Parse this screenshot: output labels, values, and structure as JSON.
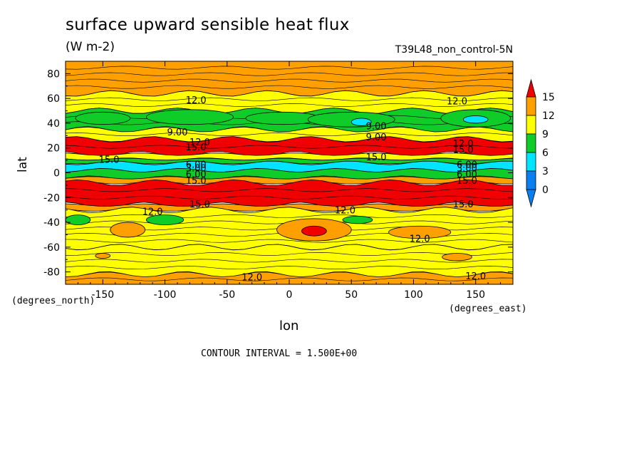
{
  "title": "surface upward sensible heat flux",
  "units": "(W m-2)",
  "run_label": "T39L48_non_control-5N",
  "contour_interval": "CONTOUR INTERVAL = 1.500E+00",
  "colors": {
    "blue": "#0a7ff0",
    "cyan": "#00e5ff",
    "green": "#10cc28",
    "yellow": "#ffff00",
    "orange": "#ffa000",
    "red": "#f00000"
  },
  "chart_data": {
    "type": "heatmap",
    "title": "surface upward sensible heat flux",
    "units": "(W m-2)",
    "xlabel": "lon",
    "ylabel": "lat",
    "x_unit_label": "(degrees_east)",
    "y_unit_label": "(degrees_north)",
    "xlim": [
      -180,
      180
    ],
    "ylim": [
      -90,
      90
    ],
    "x_ticks": [
      {
        "value": -150,
        "label": "-150"
      },
      {
        "value": -100,
        "label": "-100"
      },
      {
        "value": -50,
        "label": "-50"
      },
      {
        "value": 0,
        "label": "0"
      },
      {
        "value": 50,
        "label": "50"
      },
      {
        "value": 100,
        "label": "100"
      },
      {
        "value": 150,
        "label": "150"
      }
    ],
    "y_ticks": [
      {
        "value": 80,
        "label": "80"
      },
      {
        "value": 60,
        "label": "60"
      },
      {
        "value": 40,
        "label": "40"
      },
      {
        "value": 20,
        "label": "20"
      },
      {
        "value": 0,
        "label": "0"
      },
      {
        "value": -20,
        "label": "-20"
      },
      {
        "value": -40,
        "label": "-40"
      },
      {
        "value": -60,
        "label": "-60"
      },
      {
        "value": -80,
        "label": "-80"
      }
    ],
    "colorbar": {
      "labels": [
        "15",
        "12",
        "9",
        "6",
        "3",
        "0"
      ],
      "levels": [
        0,
        3,
        6,
        9,
        12,
        15
      ],
      "colors": [
        "#0a7ff0",
        "#00e5ff",
        "#10cc28",
        "#ffff00",
        "#ffa000",
        "#f00000"
      ]
    },
    "bands": [
      {
        "lat_from": 90,
        "lat_to": 64,
        "range": "12-15"
      },
      {
        "lat_from": 64,
        "lat_to": 50,
        "range": "9-12"
      },
      {
        "lat_from": 50,
        "lat_to": 35,
        "range": "6-9"
      },
      {
        "lat_from": 35,
        "lat_to": 27,
        "range": "9-12"
      },
      {
        "lat_from": 27,
        "lat_to": 15,
        "range": "over 15"
      },
      {
        "lat_from": 15,
        "lat_to": 11,
        "range": "9-12"
      },
      {
        "lat_from": 11,
        "lat_to": 8,
        "range": "6-9"
      },
      {
        "lat_from": 8,
        "lat_to": 2,
        "range": "3-6"
      },
      {
        "lat_from": 2,
        "lat_to": -4,
        "range": "6-9"
      },
      {
        "lat_from": -4,
        "lat_to": -8,
        "range": "12-15"
      },
      {
        "lat_from": -8,
        "lat_to": -26,
        "range": "over 15"
      },
      {
        "lat_from": -26,
        "lat_to": -30,
        "range": "12-15"
      },
      {
        "lat_from": -30,
        "lat_to": -60,
        "range": "9-12"
      },
      {
        "lat_from": -60,
        "lat_to": -82,
        "range": "9-12"
      },
      {
        "lat_from": -82,
        "lat_to": -90,
        "range": "12-15"
      }
    ],
    "features": [
      {
        "kind": "green",
        "lon": -150,
        "lat": 44,
        "rx": 22,
        "ry": 5
      },
      {
        "kind": "green",
        "lon": -80,
        "lat": 45,
        "rx": 35,
        "ry": 6
      },
      {
        "kind": "green",
        "lon": -5,
        "lat": 44,
        "rx": 30,
        "ry": 5
      },
      {
        "kind": "green",
        "lon": 50,
        "lat": 43,
        "rx": 35,
        "ry": 6
      },
      {
        "kind": "green",
        "lon": 150,
        "lat": 44,
        "rx": 28,
        "ry": 7
      },
      {
        "kind": "cyan",
        "lon": 58,
        "lat": 41,
        "rx": 8,
        "ry": 3
      },
      {
        "kind": "cyan",
        "lon": 150,
        "lat": 43,
        "rx": 10,
        "ry": 3
      },
      {
        "kind": "green",
        "lon": -170,
        "lat": -38,
        "rx": 10,
        "ry": 4
      },
      {
        "kind": "green",
        "lon": -100,
        "lat": -38,
        "rx": 15,
        "ry": 4
      },
      {
        "kind": "green",
        "lon": 55,
        "lat": -38,
        "rx": 12,
        "ry": 3
      },
      {
        "kind": "orange",
        "lon": 20,
        "lat": -46,
        "rx": 30,
        "ry": 9
      },
      {
        "kind": "red",
        "lon": 20,
        "lat": -47,
        "rx": 10,
        "ry": 4
      },
      {
        "kind": "orange",
        "lon": -130,
        "lat": -46,
        "rx": 14,
        "ry": 6
      },
      {
        "kind": "orange",
        "lon": 105,
        "lat": -48,
        "rx": 25,
        "ry": 5
      },
      {
        "kind": "orange",
        "lon": -150,
        "lat": -67,
        "rx": 6,
        "ry": 2
      },
      {
        "kind": "orange",
        "lon": 135,
        "lat": -68,
        "rx": 12,
        "ry": 3
      }
    ],
    "contour_labels": [
      {
        "text": "12.0",
        "lon": -75,
        "lat": 59
      },
      {
        "text": "12.0",
        "lon": 135,
        "lat": 58
      },
      {
        "text": "9.00",
        "lon": 70,
        "lat": 38
      },
      {
        "text": "9.00",
        "lon": -90,
        "lat": 33
      },
      {
        "text": "9.00",
        "lon": 70,
        "lat": 29
      },
      {
        "text": "12.0",
        "lon": -72,
        "lat": 25
      },
      {
        "text": "15.0",
        "lon": -75,
        "lat": 21
      },
      {
        "text": "12.0",
        "lon": 140,
        "lat": 24
      },
      {
        "text": "15.0",
        "lon": 140,
        "lat": 19
      },
      {
        "text": "15.0",
        "lon": -145,
        "lat": 11
      },
      {
        "text": "15.0",
        "lon": 70,
        "lat": 13
      },
      {
        "text": "6.00",
        "lon": -75,
        "lat": 7
      },
      {
        "text": "3.00",
        "lon": -75,
        "lat": 4
      },
      {
        "text": "6.00",
        "lon": -75,
        "lat": -1
      },
      {
        "text": "15.0",
        "lon": -75,
        "lat": -6
      },
      {
        "text": "6.00",
        "lon": 143,
        "lat": 7
      },
      {
        "text": "3.00",
        "lon": 143,
        "lat": 4
      },
      {
        "text": "6.00",
        "lon": 143,
        "lat": -1
      },
      {
        "text": "15.0",
        "lon": 143,
        "lat": -6
      },
      {
        "text": "15.0",
        "lon": -72,
        "lat": -25
      },
      {
        "text": "15.0",
        "lon": 140,
        "lat": -25
      },
      {
        "text": "12.0",
        "lon": -110,
        "lat": -31
      },
      {
        "text": "12.0",
        "lon": 45,
        "lat": -30
      },
      {
        "text": "12.0",
        "lon": 105,
        "lat": -53
      },
      {
        "text": "12.0",
        "lon": -30,
        "lat": -84
      },
      {
        "text": "12.0",
        "lon": 150,
        "lat": -83
      }
    ]
  }
}
